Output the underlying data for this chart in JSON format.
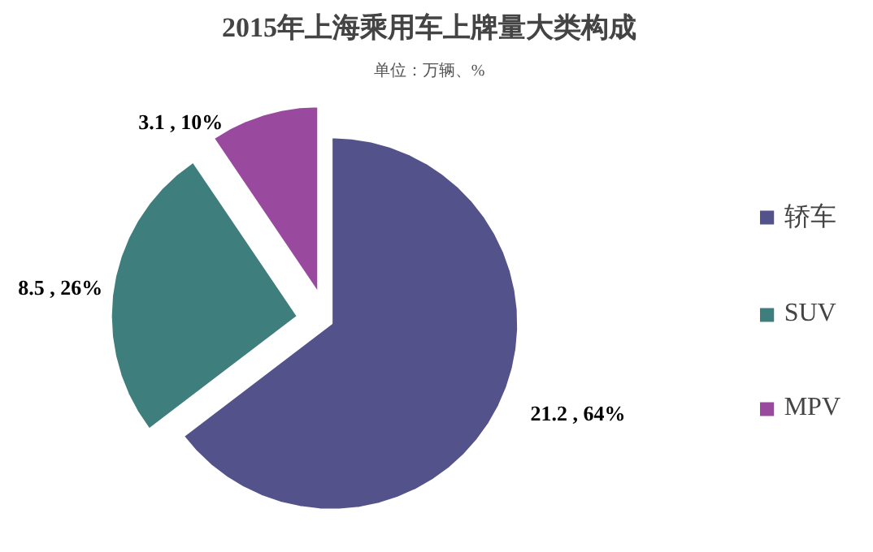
{
  "chart_data": {
    "type": "pie",
    "title": "2015年上海乘用车上牌量大类构成",
    "subtitle": "单位：万辆、%",
    "categories": [
      "轿车",
      "SUV",
      "MPV"
    ],
    "values": [
      21.2,
      8.5,
      3.1
    ],
    "colors": [
      "#53528a",
      "#3e7e7c",
      "#9a4a9e"
    ],
    "value_labels": [
      "21.2 , 64%",
      "8.5 , 26%",
      "3.1 , 10%"
    ],
    "legend": "right"
  }
}
